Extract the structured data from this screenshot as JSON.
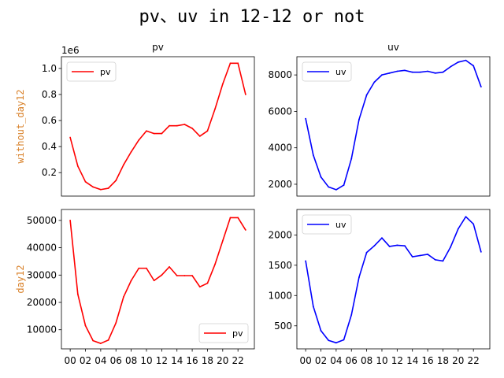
{
  "figure": {
    "suptitle": "pv、uv in 12-12 or not",
    "row_label_color": "#d9822b"
  },
  "chart_data": [
    {
      "type": "line",
      "title": "pv",
      "ylabel": "without_day12",
      "offset_text": "1e6",
      "ylim": [
        0.02,
        1.09
      ],
      "yticks": [
        0.2,
        0.4,
        0.6,
        0.8,
        1.0
      ],
      "ytick_labels": [
        "0.2",
        "0.4",
        "0.6",
        "0.8",
        "1.0"
      ],
      "show_xticks": false,
      "legend_loc": "upper-left",
      "series": [
        {
          "name": "pv",
          "color": "#ff0000",
          "x": [
            0,
            1,
            2,
            3,
            4,
            5,
            6,
            7,
            8,
            9,
            10,
            11,
            12,
            13,
            14,
            15,
            16,
            17,
            18,
            19,
            20,
            21,
            22,
            23
          ],
          "values": [
            0.47,
            0.25,
            0.13,
            0.09,
            0.07,
            0.08,
            0.14,
            0.26,
            0.36,
            0.45,
            0.52,
            0.5,
            0.5,
            0.56,
            0.56,
            0.57,
            0.54,
            0.48,
            0.52,
            0.69,
            0.88,
            1.04,
            1.04,
            0.8
          ]
        }
      ]
    },
    {
      "type": "line",
      "title": "uv",
      "ylabel": "",
      "ylim": [
        1350,
        9000
      ],
      "yticks": [
        2000,
        4000,
        6000,
        8000
      ],
      "ytick_labels": [
        "2000",
        "4000",
        "6000",
        "8000"
      ],
      "show_xticks": false,
      "legend_loc": "upper-left",
      "series": [
        {
          "name": "uv",
          "color": "#0000ff",
          "x": [
            0,
            1,
            2,
            3,
            4,
            5,
            6,
            7,
            8,
            9,
            10,
            11,
            12,
            13,
            14,
            15,
            16,
            17,
            18,
            19,
            20,
            21,
            22,
            23
          ],
          "values": [
            5600,
            3600,
            2400,
            1850,
            1700,
            1950,
            3400,
            5550,
            6900,
            7600,
            8000,
            8100,
            8200,
            8250,
            8150,
            8150,
            8200,
            8100,
            8150,
            8450,
            8700,
            8800,
            8500,
            7350
          ]
        }
      ]
    },
    {
      "type": "line",
      "title": "",
      "ylabel": "day12",
      "ylim": [
        3000,
        54000
      ],
      "yticks": [
        10000,
        20000,
        30000,
        40000,
        50000
      ],
      "ytick_labels": [
        "10000",
        "20000",
        "30000",
        "40000",
        "50000"
      ],
      "show_xticks": true,
      "xticks": [
        0,
        2,
        4,
        6,
        8,
        10,
        12,
        14,
        16,
        18,
        20,
        22
      ],
      "xtick_labels": [
        "00",
        "02",
        "04",
        "06",
        "08",
        "10",
        "12",
        "14",
        "16",
        "18",
        "20",
        "22"
      ],
      "legend_loc": "lower-right",
      "series": [
        {
          "name": "pv",
          "color": "#ff0000",
          "x": [
            0,
            1,
            2,
            3,
            4,
            5,
            6,
            7,
            8,
            9,
            10,
            11,
            12,
            13,
            14,
            15,
            16,
            17,
            18,
            19,
            20,
            21,
            22,
            23
          ],
          "values": [
            50000,
            23000,
            11500,
            6000,
            5000,
            6200,
            12500,
            22000,
            28000,
            32500,
            32500,
            28000,
            30000,
            33000,
            29800,
            29800,
            29800,
            25700,
            27000,
            34000,
            42500,
            51000,
            51000,
            46500
          ]
        }
      ]
    },
    {
      "type": "line",
      "title": "",
      "ylabel": "",
      "ylim": [
        120,
        2420
      ],
      "yticks": [
        500,
        1000,
        1500,
        2000
      ],
      "ytick_labels": [
        "500",
        "1000",
        "1500",
        "2000"
      ],
      "show_xticks": true,
      "xticks": [
        0,
        2,
        4,
        6,
        8,
        10,
        12,
        14,
        16,
        18,
        20,
        22
      ],
      "xtick_labels": [
        "00",
        "02",
        "04",
        "06",
        "08",
        "10",
        "12",
        "14",
        "16",
        "18",
        "20",
        "22"
      ],
      "legend_loc": "upper-left",
      "series": [
        {
          "name": "uv",
          "color": "#0000ff",
          "x": [
            0,
            1,
            2,
            3,
            4,
            5,
            6,
            7,
            8,
            9,
            10,
            11,
            12,
            13,
            14,
            15,
            16,
            17,
            18,
            19,
            20,
            21,
            22,
            23
          ],
          "values": [
            1570,
            820,
            420,
            260,
            220,
            270,
            680,
            1300,
            1710,
            1820,
            1950,
            1810,
            1830,
            1820,
            1640,
            1660,
            1680,
            1590,
            1570,
            1800,
            2100,
            2300,
            2180,
            1720
          ]
        }
      ]
    }
  ]
}
